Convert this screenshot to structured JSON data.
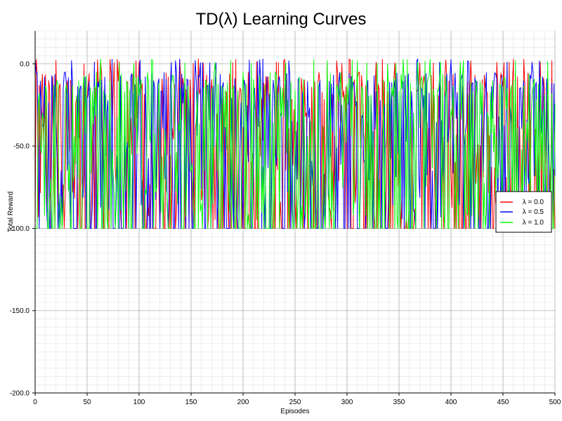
{
  "chart_data": {
    "type": "line",
    "title": "TD(λ) Learning Curves",
    "xlabel": "Episodes",
    "ylabel": "Total Reward",
    "xlim": [
      0,
      500
    ],
    "ylim": [
      -200,
      20
    ],
    "xticks": [
      0,
      50,
      100,
      150,
      200,
      250,
      300,
      350,
      400,
      450,
      500
    ],
    "yticks": [
      -200,
      -150,
      -100,
      -50,
      0
    ],
    "ytick_labels": [
      "-200.0",
      "-150.0",
      "-100.0",
      "-50.0",
      "0.0"
    ],
    "grid": true,
    "minor_grid": true,
    "legend_position": "right",
    "episodes": 500,
    "value_range": [
      -100,
      3
    ],
    "note": "Each series oscillates noisily every few episodes between about -100 and 0 across all 500 episodes; values below are a representative read.",
    "series": [
      {
        "name": "λ = 0.0",
        "color": "#ff0000",
        "values": []
      },
      {
        "name": "λ = 0.5",
        "color": "#0000ff",
        "values": []
      },
      {
        "name": "λ = 1.0",
        "color": "#00ff00",
        "values": []
      }
    ]
  }
}
